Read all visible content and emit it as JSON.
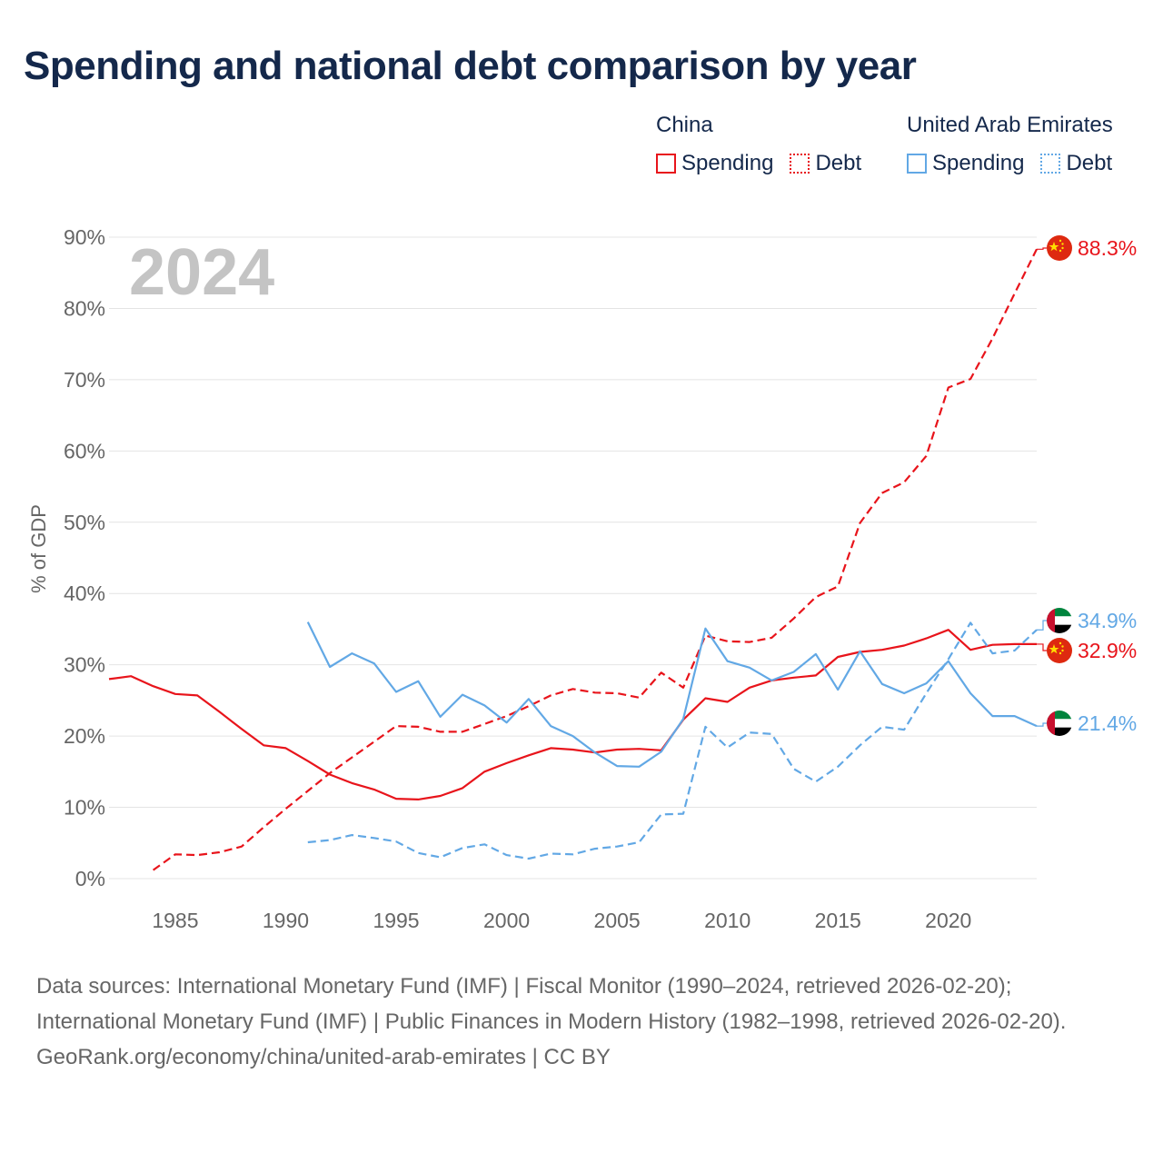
{
  "title": "Spending and national debt comparison by year",
  "legend": {
    "groups": [
      {
        "country": "China",
        "items": [
          {
            "label": "Spending",
            "color": "#e8141b",
            "style": "solid"
          },
          {
            "label": "Debt",
            "color": "#e8141b",
            "style": "dotted"
          }
        ]
      },
      {
        "country": "United Arab Emirates",
        "items": [
          {
            "label": "Spending",
            "color": "#62a8e5",
            "style": "solid"
          },
          {
            "label": "Debt",
            "color": "#62a8e5",
            "style": "dotted"
          }
        ]
      }
    ]
  },
  "chart_data": {
    "type": "line",
    "year_label": "2024",
    "ylabel": "% of GDP",
    "xlabel": "",
    "xlim": [
      1982,
      2024
    ],
    "ylim": [
      0,
      90
    ],
    "x_ticks": [
      1985,
      1990,
      1995,
      2000,
      2005,
      2010,
      2015,
      2020
    ],
    "y_ticks": [
      0,
      10,
      20,
      30,
      40,
      50,
      60,
      70,
      80,
      90
    ],
    "y_tick_suffix": "%",
    "series": [
      {
        "name": "China Spending",
        "country": "China",
        "color": "#e8141b",
        "dash": false,
        "x": [
          1982,
          1983,
          1984,
          1985,
          1986,
          1987,
          1988,
          1989,
          1990,
          1991,
          1992,
          1993,
          1994,
          1995,
          1996,
          1997,
          1998,
          1999,
          2000,
          2001,
          2002,
          2003,
          2004,
          2005,
          2006,
          2007,
          2008,
          2009,
          2010,
          2011,
          2012,
          2013,
          2014,
          2015,
          2016,
          2017,
          2018,
          2019,
          2020,
          2021,
          2022,
          2023,
          2024
        ],
        "values": [
          28.0,
          28.4,
          27.0,
          25.9,
          25.7,
          23.4,
          21.0,
          18.7,
          18.3,
          16.5,
          14.6,
          13.4,
          12.5,
          11.2,
          11.1,
          11.6,
          12.7,
          15.0,
          16.2,
          17.3,
          18.3,
          18.1,
          17.7,
          18.1,
          18.2,
          18.0,
          22.3,
          25.3,
          24.8,
          26.8,
          27.8,
          28.2,
          28.5,
          31.1,
          31.8,
          32.1,
          32.7,
          33.7,
          34.9,
          32.1,
          32.8,
          32.9,
          32.9
        ]
      },
      {
        "name": "China Debt",
        "country": "China",
        "color": "#e8141b",
        "dash": true,
        "x": [
          1984,
          1985,
          1986,
          1987,
          1988,
          1989,
          1990,
          1991,
          1992,
          1993,
          1994,
          1995,
          1996,
          1997,
          1998,
          1999,
          2000,
          2001,
          2002,
          2003,
          2004,
          2005,
          2006,
          2007,
          2008,
          2009,
          2010,
          2011,
          2012,
          2013,
          2014,
          2015,
          2016,
          2017,
          2018,
          2019,
          2020,
          2021,
          2022,
          2023,
          2024
        ],
        "values": [
          1.2,
          3.4,
          3.3,
          3.7,
          4.5,
          7.2,
          9.8,
          12.3,
          14.8,
          17.0,
          19.2,
          21.4,
          21.3,
          20.6,
          20.6,
          21.7,
          22.8,
          24.2,
          25.7,
          26.6,
          26.1,
          26.0,
          25.4,
          28.9,
          26.8,
          34.1,
          33.3,
          33.2,
          33.8,
          36.5,
          39.5,
          41.0,
          49.9,
          54.1,
          55.6,
          59.3,
          68.9,
          70.1,
          75.8,
          82.1,
          88.3
        ]
      },
      {
        "name": "United Arab Emirates Spending",
        "country": "United Arab Emirates",
        "color": "#62a8e5",
        "dash": false,
        "x": [
          1991,
          1992,
          1993,
          1994,
          1995,
          1996,
          1997,
          1998,
          1999,
          2000,
          2001,
          2002,
          2003,
          2004,
          2005,
          2006,
          2007,
          2008,
          2009,
          2010,
          2011,
          2012,
          2013,
          2014,
          2015,
          2016,
          2017,
          2018,
          2019,
          2020,
          2021,
          2022,
          2023,
          2024
        ],
        "values": [
          36.0,
          29.7,
          31.6,
          30.2,
          26.2,
          27.7,
          22.7,
          25.8,
          24.3,
          21.9,
          25.2,
          21.4,
          20.0,
          17.7,
          15.8,
          15.7,
          17.8,
          22.4,
          35.1,
          30.5,
          29.6,
          27.8,
          29.0,
          31.5,
          26.5,
          31.9,
          27.3,
          26.0,
          27.4,
          30.5,
          26.0,
          22.8,
          22.8,
          21.4
        ]
      },
      {
        "name": "United Arab Emirates Debt",
        "country": "United Arab Emirates",
        "color": "#62a8e5",
        "dash": true,
        "x": [
          1991,
          1992,
          1993,
          1994,
          1995,
          1996,
          1997,
          1998,
          1999,
          2000,
          2001,
          2002,
          2003,
          2004,
          2005,
          2006,
          2007,
          2008,
          2009,
          2010,
          2011,
          2012,
          2013,
          2014,
          2015,
          2016,
          2017,
          2018,
          2019,
          2020,
          2021,
          2022,
          2023,
          2024
        ],
        "values": [
          5.1,
          5.4,
          6.1,
          5.7,
          5.2,
          3.6,
          3.0,
          4.3,
          4.8,
          3.3,
          2.8,
          3.5,
          3.4,
          4.2,
          4.5,
          5.1,
          9.0,
          9.1,
          21.3,
          18.4,
          20.5,
          20.3,
          15.4,
          13.6,
          15.7,
          18.7,
          21.3,
          20.9,
          26.0,
          30.8,
          35.9,
          31.6,
          32.0,
          34.9
        ]
      }
    ],
    "end_labels": [
      {
        "text": "88.3%",
        "value": 88.3,
        "color": "#e8141b",
        "flag": "china-flag-icon"
      },
      {
        "text": "34.9%",
        "value": 34.9,
        "color": "#62a8e5",
        "flag": "uae-flag-icon"
      },
      {
        "text": "32.9%",
        "value": 32.9,
        "color": "#e8141b",
        "flag": "china-flag-icon"
      },
      {
        "text": "21.4%",
        "value": 21.4,
        "color": "#62a8e5",
        "flag": "uae-flag-icon"
      }
    ]
  },
  "sources": {
    "line1": "Data sources: International Monetary Fund (IMF) | Fiscal Monitor (1990–2024, retrieved 2026-02-20); International Monetary Fund (IMF) | Public Finances in Modern History (1982–1998, retrieved 2026-02-20).",
    "line2": "GeoRank.org/economy/china/united-arab-emirates | CC BY"
  }
}
